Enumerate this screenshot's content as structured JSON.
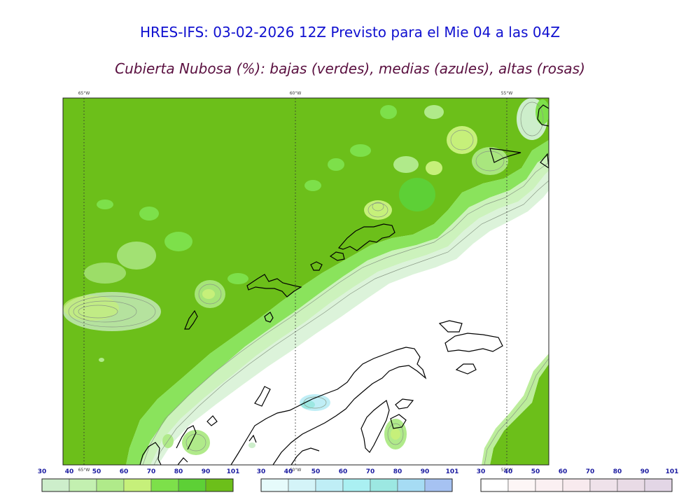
{
  "header": {
    "title": "HRES-IFS: 03-02-2026 12Z Previsto para el Mie 04 a las 04Z",
    "subtitle": "Cubierta Nubosa (%): bajas (verdes), medias (azules), altas (rosas)"
  },
  "map": {
    "meridians": [
      "65°W",
      "60°W",
      "55°W"
    ],
    "colors": {
      "low_cloud_base": "#6cbf1a",
      "coastline": "#000000",
      "grid": "#333333"
    }
  },
  "colorbars": [
    {
      "name": "low",
      "labels": [
        "30",
        "40",
        "50",
        "60",
        "70",
        "80",
        "90",
        "101"
      ],
      "colors": [
        "#cdeecb",
        "#c3f0b0",
        "#b0ea8a",
        "#c6f07a",
        "#7de04a",
        "#5dd036",
        "#6cbf1a"
      ]
    },
    {
      "name": "mid",
      "labels": [
        "30",
        "40",
        "50",
        "60",
        "70",
        "80",
        "90",
        "101"
      ],
      "colors": [
        "#e6fbfb",
        "#d4f4f8",
        "#bfeef6",
        "#aaf0f2",
        "#9ce8e2",
        "#a6dcf4",
        "#a6c2f2"
      ]
    },
    {
      "name": "high",
      "labels": [
        "30",
        "40",
        "50",
        "60",
        "70",
        "80",
        "90",
        "101"
      ],
      "colors": [
        "#ffffff",
        "#fdf6f6",
        "#fbf0f2",
        "#f8eaee",
        "#efe2ea",
        "#e9dbe6",
        "#e3d6e6"
      ]
    }
  ]
}
